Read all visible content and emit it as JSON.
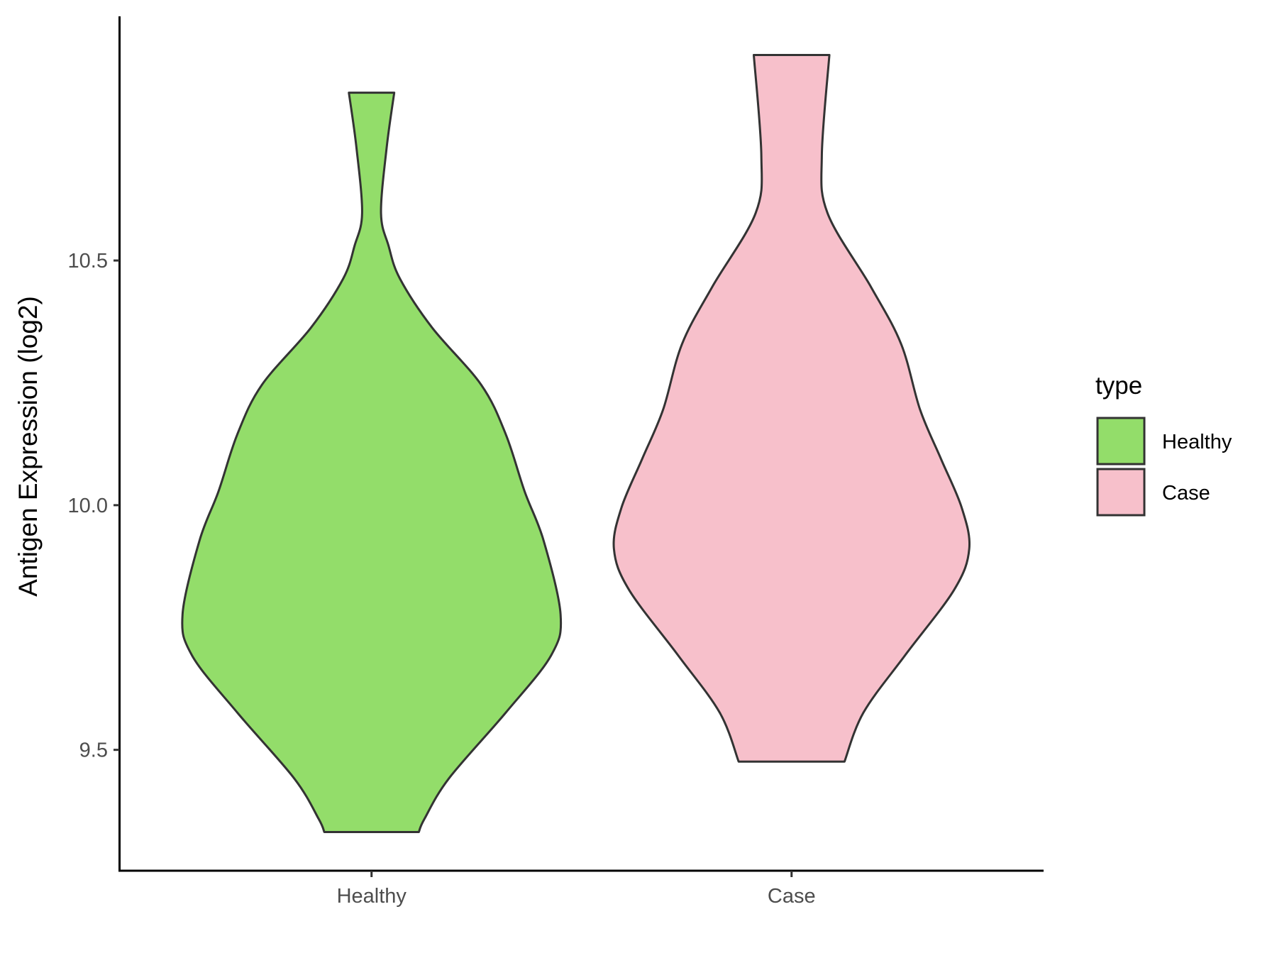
{
  "chart_data": {
    "type": "violin",
    "title": "",
    "xlabel": "",
    "ylabel": "Antigen Expression (log2)",
    "categories": [
      "Healthy",
      "Case"
    ],
    "ylim": [
      9.253,
      10.999
    ],
    "yticks": [
      9.5,
      10.0,
      10.5
    ],
    "ytick_labels": [
      "9.5",
      "10.0",
      "10.5"
    ],
    "grid": false,
    "legend": {
      "title": "type",
      "position": "right",
      "entries": [
        "Healthy",
        "Case"
      ]
    },
    "colors": {
      "Healthy": "#93DD6A",
      "Case": "#F7C0CB",
      "outline": "#333333"
    },
    "series": [
      {
        "name": "Healthy",
        "min": 9.332,
        "max": 10.843,
        "profile_y": [
          10.843,
          10.731,
          10.597,
          10.53,
          10.463,
          10.363,
          10.246,
          10.145,
          10.028,
          9.928,
          9.777,
          9.693,
          9.576,
          9.442,
          9.359,
          9.332
        ],
        "relative_width": [
          0.12,
          0.08,
          0.05,
          0.09,
          0.15,
          0.32,
          0.58,
          0.71,
          0.81,
          0.91,
          1.0,
          0.95,
          0.71,
          0.41,
          0.28,
          0.25
        ]
      },
      {
        "name": "Case",
        "min": 9.476,
        "max": 10.92,
        "profile_y": [
          10.92,
          10.714,
          10.597,
          10.446,
          10.329,
          10.195,
          10.095,
          9.995,
          9.911,
          9.827,
          9.693,
          9.576,
          9.476
        ],
        "relative_width": [
          0.2,
          0.16,
          0.19,
          0.42,
          0.58,
          0.68,
          0.79,
          0.9,
          0.94,
          0.86,
          0.6,
          0.38,
          0.28
        ]
      }
    ]
  }
}
